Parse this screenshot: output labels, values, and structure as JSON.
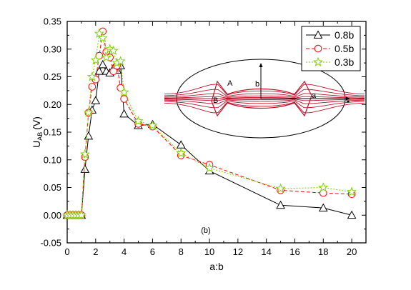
{
  "chart_data": {
    "type": "line",
    "title": "",
    "xlabel": "a:b",
    "ylabel_main": "U",
    "ylabel_sub": "AB",
    "ylabel_unit": "(V)",
    "xlim": [
      0,
      21
    ],
    "ylim": [
      -0.05,
      0.35
    ],
    "xticks": [
      0,
      2,
      4,
      6,
      8,
      10,
      12,
      14,
      16,
      18,
      20
    ],
    "yticks": [
      -0.05,
      0.0,
      0.05,
      0.1,
      0.15,
      0.2,
      0.25,
      0.3,
      0.35
    ],
    "ytick_labels": [
      "-0.05",
      "0.00",
      "0.05",
      "0.10",
      "0.15",
      "0.20",
      "0.25",
      "0.30",
      "0.35"
    ],
    "grid": false,
    "legend_position": "top-right",
    "panel_label": "(b)",
    "series": [
      {
        "name": "0.8b",
        "color": "#000000",
        "marker": "triangle",
        "dash": "solid",
        "x": [
          0,
          0.2,
          0.4,
          0.6,
          0.8,
          1.0,
          1.25,
          1.5,
          1.75,
          2.0,
          2.25,
          2.5,
          2.75,
          3.0,
          3.25,
          3.5,
          3.75,
          4.0,
          5,
          6,
          8,
          10,
          15,
          18,
          20
        ],
        "y": [
          0.0,
          0.0,
          0.0,
          0.0,
          0.0,
          0.0,
          0.083,
          0.143,
          0.19,
          0.207,
          0.26,
          0.272,
          0.26,
          0.257,
          0.265,
          0.262,
          0.27,
          0.183,
          0.162,
          0.164,
          0.127,
          0.08,
          0.018,
          0.013,
          0.0
        ]
      },
      {
        "name": "0.5b",
        "color": "#ff0000",
        "marker": "circle",
        "dash": "dashed",
        "x": [
          0,
          0.2,
          0.4,
          0.6,
          0.8,
          1.0,
          1.25,
          1.5,
          1.75,
          2.0,
          2.25,
          2.5,
          2.75,
          3.0,
          3.25,
          3.5,
          3.75,
          4.0,
          5,
          6,
          8,
          10,
          15,
          18,
          20
        ],
        "y": [
          0.0,
          0.0,
          0.0,
          0.0,
          0.0,
          0.0,
          0.105,
          0.185,
          0.232,
          0.245,
          0.288,
          0.332,
          0.295,
          0.285,
          0.26,
          0.27,
          0.23,
          0.21,
          0.165,
          0.16,
          0.108,
          0.091,
          0.045,
          0.04,
          0.038
        ]
      },
      {
        "name": "0.3b",
        "color": "#7fd000",
        "marker": "star",
        "dash": "dotted",
        "x": [
          0,
          0.2,
          0.4,
          0.6,
          0.8,
          1.0,
          1.25,
          1.5,
          1.75,
          2.0,
          2.25,
          2.5,
          2.75,
          3.0,
          3.25,
          3.5,
          3.75,
          4.0,
          5,
          6,
          8,
          10,
          15,
          18,
          20
        ],
        "y": [
          0.0,
          0.0,
          0.0,
          0.0,
          0.0,
          0.0,
          0.11,
          0.185,
          0.25,
          0.28,
          0.328,
          0.32,
          0.285,
          0.3,
          0.297,
          0.275,
          0.278,
          0.222,
          0.17,
          0.162,
          0.112,
          0.085,
          0.048,
          0.05,
          0.042
        ]
      }
    ],
    "inset": {
      "labels": {
        "A": "A",
        "B": "B",
        "a": "a",
        "b": "b"
      }
    }
  }
}
